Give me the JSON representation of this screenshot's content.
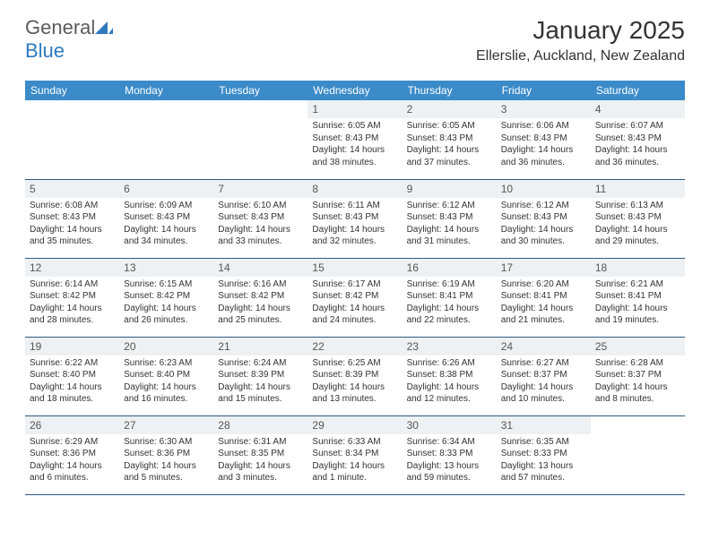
{
  "brand": {
    "name_gray": "General",
    "name_blue": "Blue"
  },
  "title": "January 2025",
  "location": "Ellerslie, Auckland, New Zealand",
  "calendar": {
    "type": "table",
    "header_bg": "#3b8bc9",
    "header_fg": "#ffffff",
    "daynum_bg": "#eef1f3",
    "border_color": "#2f5a80",
    "background_color": "#ffffff",
    "font_family": "Arial",
    "header_fontsize": 12,
    "daynum_fontsize": 12,
    "body_fontsize": 10,
    "columns": [
      "Sunday",
      "Monday",
      "Tuesday",
      "Wednesday",
      "Thursday",
      "Friday",
      "Saturday"
    ],
    "grid": [
      [
        null,
        null,
        null,
        {
          "n": "1",
          "sr": "Sunrise: 6:05 AM",
          "ss": "Sunset: 8:43 PM",
          "dl": "Daylight: 14 hours and 38 minutes."
        },
        {
          "n": "2",
          "sr": "Sunrise: 6:05 AM",
          "ss": "Sunset: 8:43 PM",
          "dl": "Daylight: 14 hours and 37 minutes."
        },
        {
          "n": "3",
          "sr": "Sunrise: 6:06 AM",
          "ss": "Sunset: 8:43 PM",
          "dl": "Daylight: 14 hours and 36 minutes."
        },
        {
          "n": "4",
          "sr": "Sunrise: 6:07 AM",
          "ss": "Sunset: 8:43 PM",
          "dl": "Daylight: 14 hours and 36 minutes."
        }
      ],
      [
        {
          "n": "5",
          "sr": "Sunrise: 6:08 AM",
          "ss": "Sunset: 8:43 PM",
          "dl": "Daylight: 14 hours and 35 minutes."
        },
        {
          "n": "6",
          "sr": "Sunrise: 6:09 AM",
          "ss": "Sunset: 8:43 PM",
          "dl": "Daylight: 14 hours and 34 minutes."
        },
        {
          "n": "7",
          "sr": "Sunrise: 6:10 AM",
          "ss": "Sunset: 8:43 PM",
          "dl": "Daylight: 14 hours and 33 minutes."
        },
        {
          "n": "8",
          "sr": "Sunrise: 6:11 AM",
          "ss": "Sunset: 8:43 PM",
          "dl": "Daylight: 14 hours and 32 minutes."
        },
        {
          "n": "9",
          "sr": "Sunrise: 6:12 AM",
          "ss": "Sunset: 8:43 PM",
          "dl": "Daylight: 14 hours and 31 minutes."
        },
        {
          "n": "10",
          "sr": "Sunrise: 6:12 AM",
          "ss": "Sunset: 8:43 PM",
          "dl": "Daylight: 14 hours and 30 minutes."
        },
        {
          "n": "11",
          "sr": "Sunrise: 6:13 AM",
          "ss": "Sunset: 8:43 PM",
          "dl": "Daylight: 14 hours and 29 minutes."
        }
      ],
      [
        {
          "n": "12",
          "sr": "Sunrise: 6:14 AM",
          "ss": "Sunset: 8:42 PM",
          "dl": "Daylight: 14 hours and 28 minutes."
        },
        {
          "n": "13",
          "sr": "Sunrise: 6:15 AM",
          "ss": "Sunset: 8:42 PM",
          "dl": "Daylight: 14 hours and 26 minutes."
        },
        {
          "n": "14",
          "sr": "Sunrise: 6:16 AM",
          "ss": "Sunset: 8:42 PM",
          "dl": "Daylight: 14 hours and 25 minutes."
        },
        {
          "n": "15",
          "sr": "Sunrise: 6:17 AM",
          "ss": "Sunset: 8:42 PM",
          "dl": "Daylight: 14 hours and 24 minutes."
        },
        {
          "n": "16",
          "sr": "Sunrise: 6:19 AM",
          "ss": "Sunset: 8:41 PM",
          "dl": "Daylight: 14 hours and 22 minutes."
        },
        {
          "n": "17",
          "sr": "Sunrise: 6:20 AM",
          "ss": "Sunset: 8:41 PM",
          "dl": "Daylight: 14 hours and 21 minutes."
        },
        {
          "n": "18",
          "sr": "Sunrise: 6:21 AM",
          "ss": "Sunset: 8:41 PM",
          "dl": "Daylight: 14 hours and 19 minutes."
        }
      ],
      [
        {
          "n": "19",
          "sr": "Sunrise: 6:22 AM",
          "ss": "Sunset: 8:40 PM",
          "dl": "Daylight: 14 hours and 18 minutes."
        },
        {
          "n": "20",
          "sr": "Sunrise: 6:23 AM",
          "ss": "Sunset: 8:40 PM",
          "dl": "Daylight: 14 hours and 16 minutes."
        },
        {
          "n": "21",
          "sr": "Sunrise: 6:24 AM",
          "ss": "Sunset: 8:39 PM",
          "dl": "Daylight: 14 hours and 15 minutes."
        },
        {
          "n": "22",
          "sr": "Sunrise: 6:25 AM",
          "ss": "Sunset: 8:39 PM",
          "dl": "Daylight: 14 hours and 13 minutes."
        },
        {
          "n": "23",
          "sr": "Sunrise: 6:26 AM",
          "ss": "Sunset: 8:38 PM",
          "dl": "Daylight: 14 hours and 12 minutes."
        },
        {
          "n": "24",
          "sr": "Sunrise: 6:27 AM",
          "ss": "Sunset: 8:37 PM",
          "dl": "Daylight: 14 hours and 10 minutes."
        },
        {
          "n": "25",
          "sr": "Sunrise: 6:28 AM",
          "ss": "Sunset: 8:37 PM",
          "dl": "Daylight: 14 hours and 8 minutes."
        }
      ],
      [
        {
          "n": "26",
          "sr": "Sunrise: 6:29 AM",
          "ss": "Sunset: 8:36 PM",
          "dl": "Daylight: 14 hours and 6 minutes."
        },
        {
          "n": "27",
          "sr": "Sunrise: 6:30 AM",
          "ss": "Sunset: 8:36 PM",
          "dl": "Daylight: 14 hours and 5 minutes."
        },
        {
          "n": "28",
          "sr": "Sunrise: 6:31 AM",
          "ss": "Sunset: 8:35 PM",
          "dl": "Daylight: 14 hours and 3 minutes."
        },
        {
          "n": "29",
          "sr": "Sunrise: 6:33 AM",
          "ss": "Sunset: 8:34 PM",
          "dl": "Daylight: 14 hours and 1 minute."
        },
        {
          "n": "30",
          "sr": "Sunrise: 6:34 AM",
          "ss": "Sunset: 8:33 PM",
          "dl": "Daylight: 13 hours and 59 minutes."
        },
        {
          "n": "31",
          "sr": "Sunrise: 6:35 AM",
          "ss": "Sunset: 8:33 PM",
          "dl": "Daylight: 13 hours and 57 minutes."
        },
        null
      ]
    ]
  }
}
